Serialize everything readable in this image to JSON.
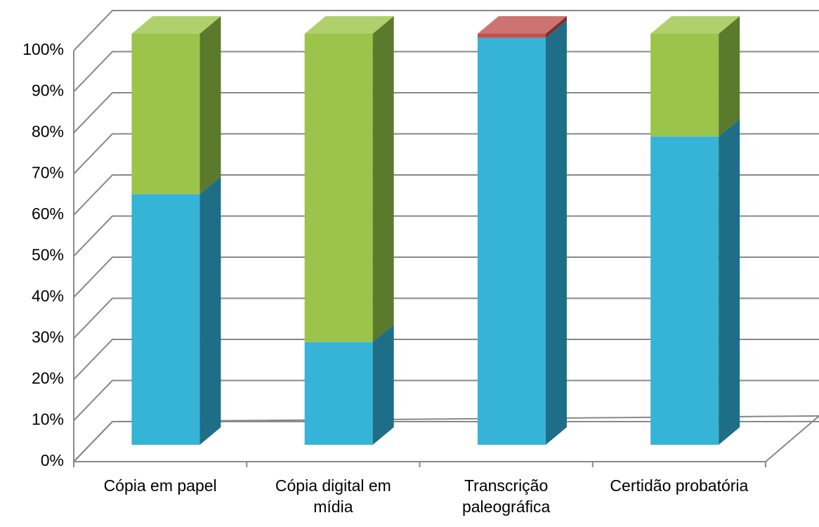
{
  "chart_data": {
    "type": "bar3d_stacked",
    "categories": [
      "Cópia em papel",
      "Cópia digital em mídia",
      "Transcrição paleográfica",
      "Certidão probatória"
    ],
    "series": [
      {
        "color": "#35b4d8",
        "side": "#1e6e88",
        "values": [
          61,
          25,
          99,
          75
        ]
      },
      {
        "color": "#9cc44a",
        "side": "#5c7a2c",
        "values": [
          39,
          75,
          0,
          25
        ]
      },
      {
        "color": "#c0504d",
        "side": "#7a2e2c",
        "values": [
          0,
          0,
          1,
          0
        ]
      }
    ],
    "ylim": [
      0,
      100
    ],
    "yticks": [
      {
        "value": 0,
        "label": "0%"
      },
      {
        "value": 10,
        "label": "10%"
      },
      {
        "value": 20,
        "label": "20%"
      },
      {
        "value": 30,
        "label": "30%"
      },
      {
        "value": 40,
        "label": "40%"
      },
      {
        "value": 50,
        "label": "50%"
      },
      {
        "value": 60,
        "label": "60%"
      },
      {
        "value": 70,
        "label": "70%"
      },
      {
        "value": 80,
        "label": "80%"
      },
      {
        "value": 90,
        "label": "90%"
      },
      {
        "value": 100,
        "label": "100%"
      }
    ],
    "grid": true
  }
}
